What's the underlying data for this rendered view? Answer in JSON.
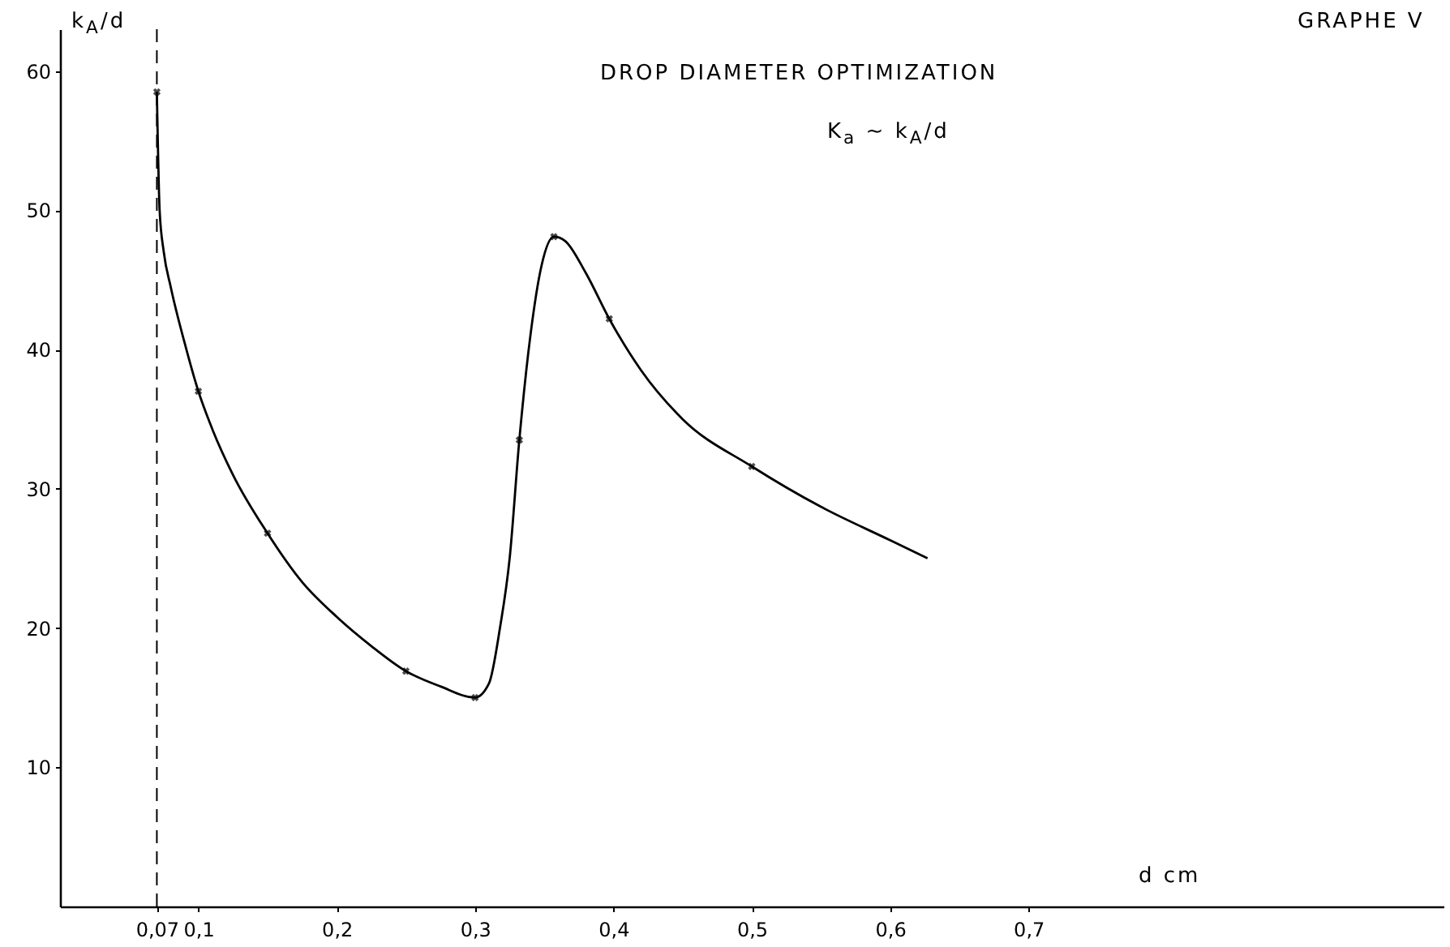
{
  "chart_data": {
    "type": "line",
    "title": "DROP DIAMETER OPTIMIZATION",
    "xlabel": "d cm",
    "ylabel": "k$_{A}$/d",
    "annotations": [
      "GRAPHE V",
      "K$_{a}$ ∼ k$_{A}$/d"
    ],
    "xlim": [
      0,
      1.0
    ],
    "ylim": [
      0,
      63
    ],
    "xticks": [
      {
        "value": 0.07,
        "label": "0,07"
      },
      {
        "value": 0.1,
        "label": "0,1"
      },
      {
        "value": 0.2,
        "label": "0,2"
      },
      {
        "value": 0.3,
        "label": "0,3"
      },
      {
        "value": 0.4,
        "label": "0,4"
      },
      {
        "value": 0.5,
        "label": "0,5"
      },
      {
        "value": 0.6,
        "label": "0,6"
      },
      {
        "value": 0.7,
        "label": "0,7"
      }
    ],
    "yticks": [
      10,
      20,
      30,
      40,
      50,
      60
    ],
    "grid": false,
    "series": [
      {
        "color": "#000000",
        "marker": "none",
        "x": [
          0.07,
          0.072,
          0.075,
          0.08,
          0.09,
          0.1,
          0.11,
          0.125,
          0.15,
          0.175,
          0.2,
          0.225,
          0.25,
          0.275,
          0.3,
          0.31,
          0.318,
          0.325,
          0.332,
          0.34,
          0.348,
          0.357,
          0.365,
          0.38,
          0.397,
          0.42,
          0.45,
          0.5,
          0.55,
          0.6,
          0.627
        ],
        "values": [
          58.5,
          50,
          47,
          44.5,
          40.5,
          37,
          34.3,
          31,
          26.8,
          23.3,
          20.8,
          18.7,
          16.9,
          15.8,
          15,
          16,
          20,
          25,
          33.5,
          41,
          46,
          48.1,
          47.8,
          45.5,
          42.2,
          38.5,
          35,
          31.6,
          28.7,
          26.3,
          25
        ]
      },
      {
        "type": "scatter",
        "color": "#000000",
        "marker": "cross",
        "x": [
          0.07,
          0.1,
          0.15,
          0.25,
          0.3,
          0.332,
          0.357,
          0.397,
          0.5
        ],
        "values": [
          58.5,
          37,
          26.8,
          16.9,
          15,
          33.5,
          48.1,
          42.2,
          31.6
        ]
      }
    ],
    "ref_lines": [
      {
        "axis": "x",
        "value": 0.07,
        "line_style": "dashed"
      }
    ]
  }
}
